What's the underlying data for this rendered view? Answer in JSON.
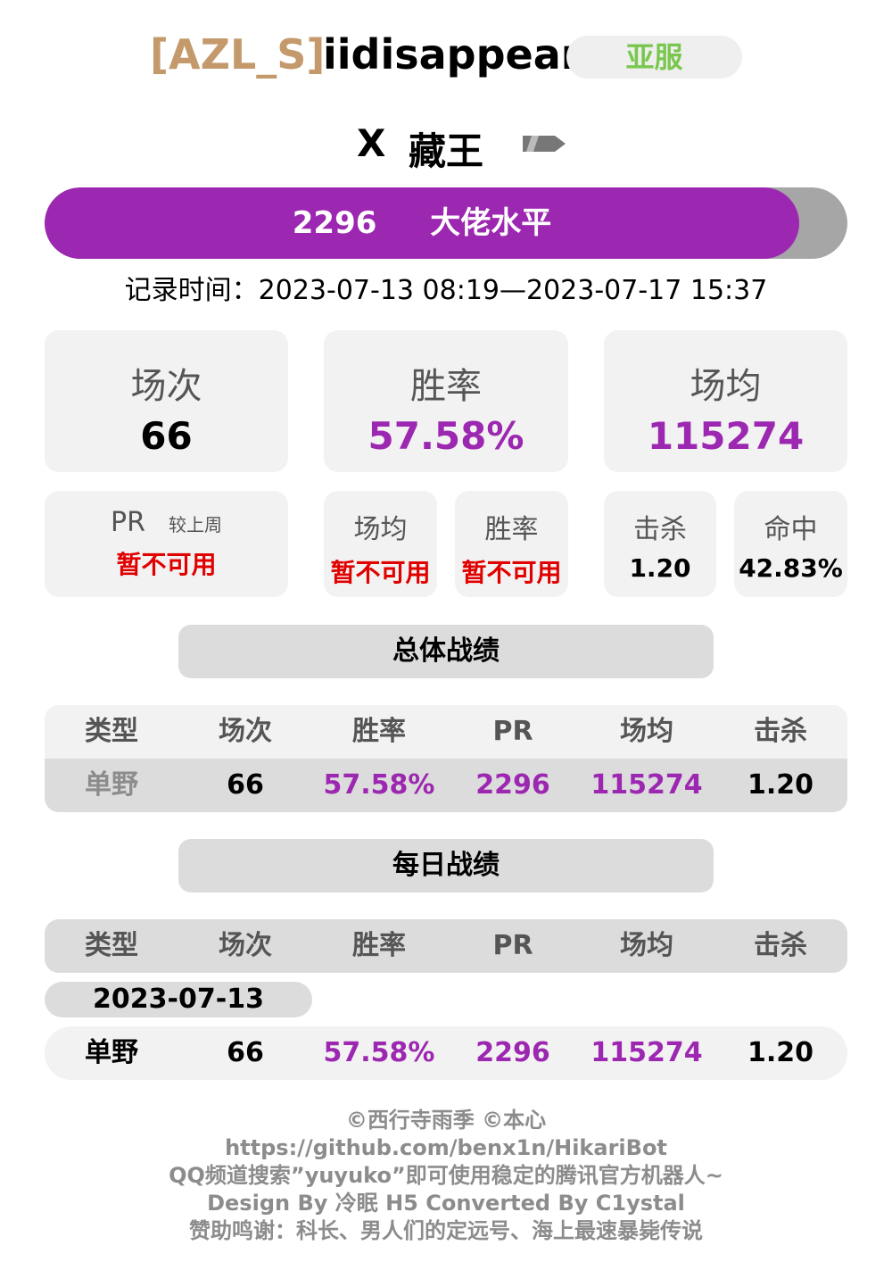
{
  "header": {
    "clan_tag": "[AZL_S]",
    "player_name": "iidisappear",
    "server": "亚服"
  },
  "ship": {
    "tier": "X",
    "name": "藏王",
    "icon": "cruiser-class-icon"
  },
  "pr_bar": {
    "value": "2296",
    "level": "大佬水平",
    "fill_fraction": 0.94,
    "fill_color": "#9c27b0"
  },
  "record_time": "记录时间：2023-07-13 08:19—2023-07-17 15:37",
  "summary": {
    "battles_label": "场次",
    "battles_value": "66",
    "winrate_label": "胜率",
    "winrate_value": "57.58%",
    "avg_dmg_label": "场均",
    "avg_dmg_value": "115274"
  },
  "weekly": {
    "pr_label": "PR",
    "pr_sub_label": "较上周",
    "pr_value": "暂不可用",
    "avg_label": "场均",
    "avg_value": "暂不可用",
    "winrate_label": "胜率",
    "winrate_value": "暂不可用",
    "kills_label": "击杀",
    "kills_value": "1.20",
    "hit_label": "命中",
    "hit_value": "42.83%"
  },
  "overall": {
    "title": "总体战绩",
    "headers": [
      "类型",
      "场次",
      "胜率",
      "PR",
      "场均",
      "击杀"
    ],
    "row": [
      "单野",
      "66",
      "57.58%",
      "2296",
      "115274",
      "1.20"
    ]
  },
  "daily": {
    "title": "每日战绩",
    "headers": [
      "类型",
      "场次",
      "胜率",
      "PR",
      "场均",
      "击杀"
    ],
    "date": "2023-07-13",
    "row": [
      "单野",
      "66",
      "57.58%",
      "2296",
      "115274",
      "1.20"
    ]
  },
  "footer": {
    "line1": "©西行寺雨季  ©本心",
    "line2": "https://github.com/benx1n/HikariBot",
    "line3": "QQ频道搜索”yuyuko”即可使用稳定的腾讯官方机器人~",
    "line4": "Design By 冷眠 H5 Converted By C1ystal",
    "line5": "赞助鸣谢：科长、男人们的定远号、海上最速暴毙传说"
  },
  "colors": {
    "accent_purple": "#9c27b0",
    "clan_gold": "#c49a6c",
    "server_green": "#7ac74f",
    "unavailable_red": "#e00000"
  }
}
